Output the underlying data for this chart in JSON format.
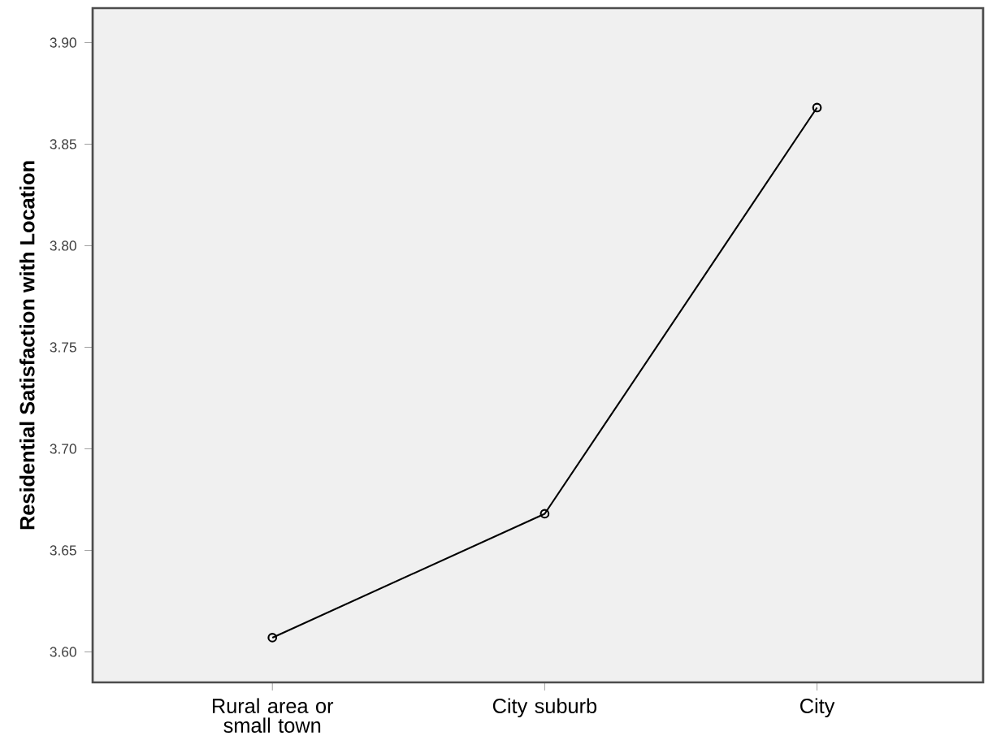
{
  "chart_data": {
    "type": "line",
    "ylabel": "**Residential Satisfaction with Location**",
    "categories": [
      "Rural area or small town",
      "City suburb",
      "City"
    ],
    "values": [
      3.607,
      3.668,
      3.868
    ],
    "color": "#000000",
    "marker": "circle",
    "ylim": [
      3.585,
      3.917
    ],
    "yticks": [
      {
        "value": 3.6,
        "label": "3.60"
      },
      {
        "value": 3.65,
        "label": "3.65"
      },
      {
        "value": 3.7,
        "label": "3.70"
      },
      {
        "value": 3.75,
        "label": "3.75"
      },
      {
        "value": 3.8,
        "label": "3.80"
      },
      {
        "value": 3.85,
        "label": "3.85"
      },
      {
        "value": 3.9,
        "label": "3.90"
      }
    ],
    "grid": false
  }
}
